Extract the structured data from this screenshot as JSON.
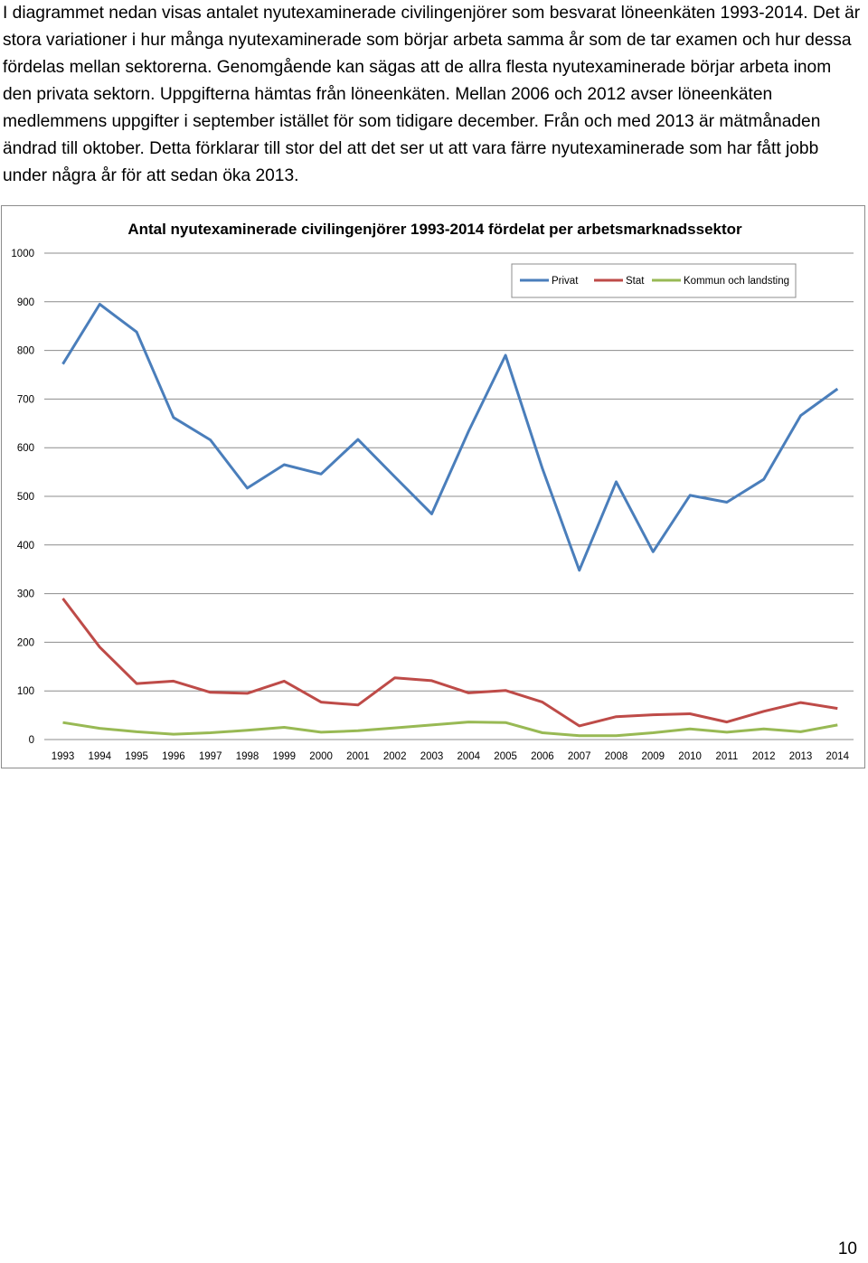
{
  "document": {
    "intro_text": "I diagrammet nedan visas antalet nyutexaminerade civilingenjörer som besvarat löneenkäten 1993-2014. Det är stora variationer i hur många nyutexaminerade som börjar arbeta samma år som de tar examen och hur dessa fördelas mellan sektorerna. Genomgående kan sägas att de allra flesta nyutexaminerade börjar arbeta inom den privata sektorn. Uppgifterna hämtas från löneenkäten. Mellan 2006 och 2012 avser löneenkäten medlemmens uppgifter i september istället för som tidigare december. Från och med 2013 är mätmånaden ändrad till oktober. Detta förklarar till stor del att det ser ut att vara färre nyutexaminerade som har fått jobb under några år för att sedan öka 2013.",
    "page_number": "10"
  },
  "chart_data": {
    "type": "line",
    "title": "Antal nyutexaminerade civilingenjörer 1993-2014 fördelat per arbetsmarknadssektor",
    "xlabel": "",
    "ylabel": "",
    "ylim": [
      0,
      1000
    ],
    "yticks": [
      0,
      100,
      200,
      300,
      400,
      500,
      600,
      700,
      800,
      900,
      1000
    ],
    "grid": true,
    "legend_position": "top-right",
    "categories": [
      "1993",
      "1994",
      "1995",
      "1996",
      "1997",
      "1998",
      "1999",
      "2000",
      "2001",
      "2002",
      "2003",
      "2004",
      "2005",
      "2006",
      "2007",
      "2008",
      "2009",
      "2010",
      "2011",
      "2012",
      "2013",
      "2014"
    ],
    "series": [
      {
        "name": "Privat",
        "color": "#4a7ebb",
        "values": [
          772,
          895,
          838,
          662,
          616,
          517,
          565,
          546,
          617,
          540,
          464,
          634,
          790,
          557,
          348,
          530,
          386,
          502,
          488,
          535,
          666,
          721
        ]
      },
      {
        "name": "Stat",
        "color": "#be4b48",
        "values": [
          290,
          190,
          115,
          120,
          97,
          95,
          120,
          77,
          71,
          127,
          121,
          96,
          101,
          77,
          28,
          47,
          51,
          53,
          36,
          58,
          76,
          64
        ]
      },
      {
        "name": "Kommun och landsting",
        "color": "#98b954",
        "values": [
          35,
          23,
          16,
          11,
          14,
          19,
          25,
          15,
          18,
          24,
          30,
          36,
          35,
          14,
          8,
          8,
          14,
          22,
          15,
          22,
          16,
          30
        ]
      }
    ]
  }
}
